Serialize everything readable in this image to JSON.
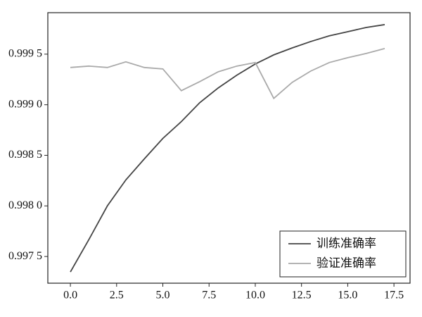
{
  "chart_data": {
    "type": "line",
    "x": [
      0,
      1,
      2,
      3,
      4,
      5,
      6,
      7,
      8,
      9,
      10,
      11,
      12,
      13,
      14,
      15,
      16,
      17
    ],
    "series": [
      {
        "name": "训练准确率",
        "color": "#444444",
        "values": [
          0.997347,
          0.997667,
          0.998,
          0.998257,
          0.998465,
          0.998667,
          0.998833,
          0.999021,
          0.999167,
          0.999292,
          0.999403,
          0.999493,
          0.999562,
          0.999625,
          0.999681,
          0.999722,
          0.999764,
          0.999792
        ]
      },
      {
        "name": "验证准确率",
        "color": "#aaaaaa",
        "values": [
          0.999368,
          0.999382,
          0.999368,
          0.999424,
          0.999368,
          0.999354,
          0.999139,
          0.999229,
          0.999326,
          0.999382,
          0.999417,
          0.999063,
          0.999222,
          0.999333,
          0.999417,
          0.999465,
          0.999507,
          0.999556
        ]
      }
    ],
    "xlim": [
      -1.22,
      18.37
    ],
    "xticks": [
      {
        "value": 0,
        "label": "0.0"
      },
      {
        "value": 2.5,
        "label": "2.5"
      },
      {
        "value": 5,
        "label": "5.0"
      },
      {
        "value": 7.5,
        "label": "7.5"
      },
      {
        "value": 10,
        "label": "10.0"
      },
      {
        "value": 12.5,
        "label": "12.5"
      },
      {
        "value": 15,
        "label": "15.0"
      },
      {
        "value": 17.5,
        "label": "17.5"
      }
    ],
    "ylim": [
      0.997236,
      0.99991
    ],
    "yticks": [
      {
        "value": 0.9975,
        "label": "0.997 5"
      },
      {
        "value": 0.998,
        "label": "0.998 0"
      },
      {
        "value": 0.9985,
        "label": "0.998 5"
      },
      {
        "value": 0.999,
        "label": "0.999 0"
      },
      {
        "value": 0.9995,
        "label": "0.999 5"
      }
    ],
    "legend": "lower right",
    "grid": false
  }
}
